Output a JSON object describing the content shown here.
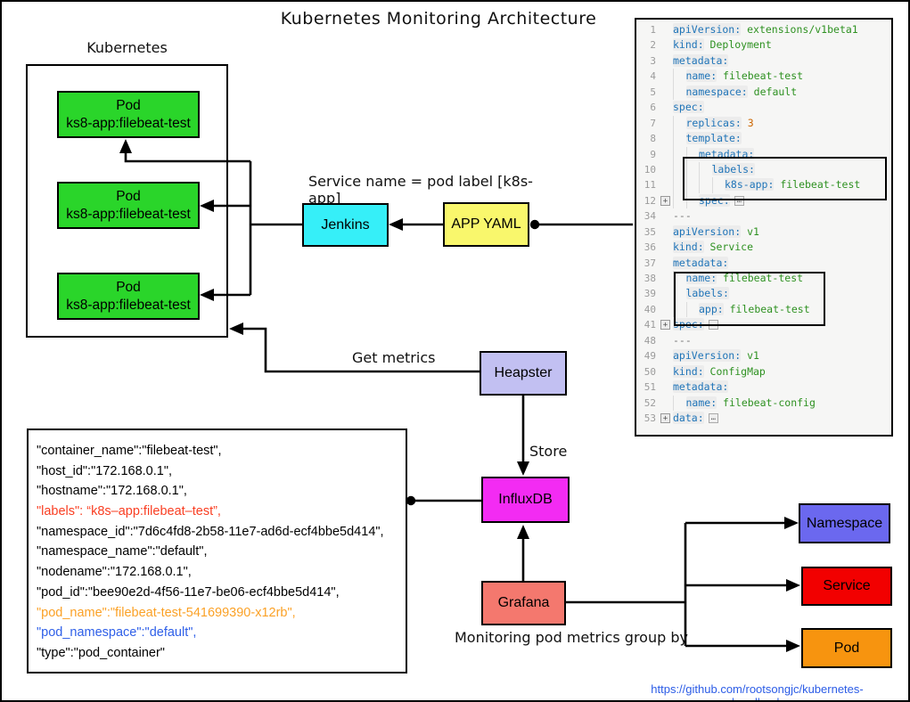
{
  "title": "Kubernetes Monitoring Architecture",
  "cluster": {
    "label": "Kubernetes",
    "pods": [
      {
        "name": "Pod",
        "label": "ks8-app:filebeat-test"
      },
      {
        "name": "Pod",
        "label": "ks8-app:filebeat-test"
      },
      {
        "name": "Pod",
        "label": "ks8-app:filebeat-test"
      }
    ]
  },
  "nodes": {
    "jenkins": "Jenkins",
    "app_yaml": "APP YAML",
    "heapster": "Heapster",
    "influxdb": "InfluxDB",
    "grafana": "Grafana",
    "namespace": "Namespace",
    "service": "Service",
    "pod": "Pod"
  },
  "annotations": {
    "service_name": "Service name = pod label [k8s-app]",
    "get_metrics": "Get metrics",
    "store": "Store",
    "group_by": "Monitoring pod metrics group by"
  },
  "footer": {
    "link": "https://github.com/rootsongjc/kubernetes-handbook"
  },
  "metrics_block": {
    "lines": [
      {
        "text": "\"container_name\":\"filebeat-test\",",
        "color": "black"
      },
      {
        "text": "\"host_id\":\"172.168.0.1\",",
        "color": "black"
      },
      {
        "text": "\"hostname\":\"172.168.0.1\",",
        "color": "black"
      },
      {
        "text": "\"labels\": “k8s–app:filebeat–test”,",
        "color": "red"
      },
      {
        "text": "\"namespace_id\":\"7d6c4fd8-2b58-11e7-ad6d-ecf4bbe5d414\",",
        "color": "black"
      },
      {
        "text": "\"namespace_name\":\"default\",",
        "color": "black"
      },
      {
        "text": "\"nodename\":\"172.168.0.1\",",
        "color": "black"
      },
      {
        "text": "\"pod_id\":\"bee90e2d-4f56-11e7-be06-ecf4bbe5d414\",",
        "color": "black"
      },
      {
        "text": "\"pod_name\":\"filebeat-test-541699390-x12rb\",",
        "color": "orange"
      },
      {
        "text": "\"pod_namespace\":\"default\",",
        "color": "blue"
      },
      {
        "text": "\"type\":\"pod_container\"",
        "color": "black"
      }
    ]
  },
  "code_panel": {
    "lines": [
      {
        "num": 1,
        "indent": 0,
        "key": "apiVersion:",
        "value": "extensions/v1beta1"
      },
      {
        "num": 2,
        "indent": 0,
        "key": "kind:",
        "value": "Deployment"
      },
      {
        "num": 3,
        "indent": 0,
        "key": "metadata:"
      },
      {
        "num": 4,
        "indent": 1,
        "key": "name:",
        "value": "filebeat-test"
      },
      {
        "num": 5,
        "indent": 1,
        "key": "namespace:",
        "value": "default"
      },
      {
        "num": 6,
        "indent": 0,
        "key": "spec:"
      },
      {
        "num": 7,
        "indent": 1,
        "key": "replicas:",
        "value": "3",
        "number": true
      },
      {
        "num": 8,
        "indent": 1,
        "key": "template:"
      },
      {
        "num": 9,
        "indent": 2,
        "key": "metadata:"
      },
      {
        "num": 10,
        "indent": 3,
        "key": "labels:"
      },
      {
        "num": 11,
        "indent": 4,
        "key": "k8s-app:",
        "value": "filebeat-test"
      },
      {
        "num": 12,
        "indent": 2,
        "key": "spec:",
        "fold": true
      },
      {
        "num": 34,
        "dash": true
      },
      {
        "num": 35,
        "indent": 0,
        "key": "apiVersion:",
        "value": "v1"
      },
      {
        "num": 36,
        "indent": 0,
        "key": "kind:",
        "value": "Service"
      },
      {
        "num": 37,
        "indent": 0,
        "key": "metadata:"
      },
      {
        "num": 38,
        "indent": 1,
        "key": "name:",
        "value": "filebeat-test"
      },
      {
        "num": 39,
        "indent": 1,
        "key": "labels:"
      },
      {
        "num": 40,
        "indent": 2,
        "key": "app:",
        "value": "filebeat-test"
      },
      {
        "num": 41,
        "indent": 0,
        "key": "spec:",
        "fold": true
      },
      {
        "num": 48,
        "dash": true
      },
      {
        "num": 49,
        "indent": 0,
        "key": "apiVersion:",
        "value": "v1"
      },
      {
        "num": 50,
        "indent": 0,
        "key": "kind:",
        "value": "ConfigMap"
      },
      {
        "num": 51,
        "indent": 0,
        "key": "metadata:"
      },
      {
        "num": 52,
        "indent": 1,
        "key": "name:",
        "value": "filebeat-config"
      },
      {
        "num": 53,
        "indent": 0,
        "key": "data:",
        "fold": true
      }
    ]
  },
  "colors": {
    "pod_green": "#2AD52A",
    "jenkins_cyan": "#36EFF8",
    "app_yaml_yellow": "#F9F76C",
    "heapster_lavender": "#C2C0F2",
    "influxdb_magenta": "#F32BF3",
    "grafana_salmon": "#F4786E",
    "namespace_blue": "#6B68EF",
    "service_red": "#F20000",
    "pod_orange": "#F7940F",
    "link_blue": "#2B5CE6",
    "code_key_blue": "#1F74B8",
    "code_value_green": "#2E9121",
    "code_number_orange": "#CC6600",
    "labels_red": "#F93E22",
    "pod_name_orange": "#FBA126",
    "pod_namespace_blue": "#2E5FE8"
  }
}
